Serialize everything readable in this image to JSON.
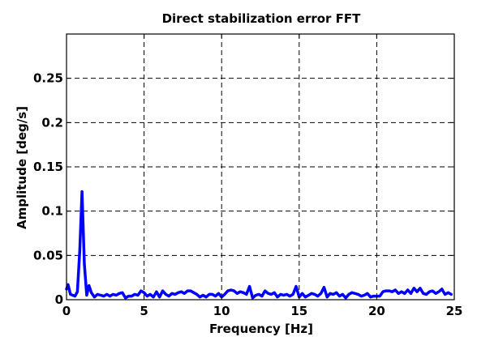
{
  "chart_data": {
    "type": "line",
    "title": "Direct stabilization error FFT",
    "xlabel": "Frequency [Hz]",
    "ylabel": "Amplitude [deg/s]",
    "xlim": [
      0,
      25
    ],
    "ylim": [
      0,
      0.3
    ],
    "xticks": [
      0,
      5,
      10,
      15,
      20,
      25
    ],
    "xtick_labels": [
      "0",
      "5",
      "10",
      "15",
      "20",
      "25"
    ],
    "yticks": [
      0,
      0.05,
      0.1,
      0.15,
      0.2,
      0.25
    ],
    "ytick_labels": [
      "0",
      "0.05",
      "0.1",
      "0.15",
      "0.2",
      "0.25"
    ],
    "grid": true,
    "series": [
      {
        "color": "#0000ff",
        "x": [
          0.0,
          0.1,
          0.25,
          0.4,
          0.55,
          0.7,
          0.85,
          1.0,
          1.15,
          1.3,
          1.45,
          1.6,
          1.8,
          2.0,
          2.2,
          2.4,
          2.6,
          2.8,
          3.0,
          3.2,
          3.4,
          3.6,
          3.8,
          4.0,
          4.2,
          4.4,
          4.6,
          4.8,
          5.0,
          5.2,
          5.4,
          5.6,
          5.8,
          6.0,
          6.2,
          6.4,
          6.6,
          6.8,
          7.0,
          7.2,
          7.4,
          7.6,
          7.8,
          8.0,
          8.2,
          8.4,
          8.6,
          8.8,
          9.0,
          9.2,
          9.4,
          9.6,
          9.8,
          10.0,
          10.2,
          10.4,
          10.6,
          10.8,
          11.0,
          11.2,
          11.4,
          11.6,
          11.8,
          12.0,
          12.2,
          12.4,
          12.6,
          12.8,
          13.0,
          13.2,
          13.4,
          13.6,
          13.8,
          14.0,
          14.2,
          14.4,
          14.6,
          14.8,
          15.0,
          15.2,
          15.4,
          15.6,
          15.8,
          16.0,
          16.2,
          16.4,
          16.6,
          16.8,
          17.0,
          17.2,
          17.4,
          17.6,
          17.8,
          18.0,
          18.2,
          18.4,
          18.6,
          18.8,
          19.0,
          19.2,
          19.4,
          19.6,
          19.8,
          20.0,
          20.2,
          20.4,
          20.6,
          20.8,
          21.0,
          21.2,
          21.4,
          21.6,
          21.8,
          22.0,
          22.2,
          22.4,
          22.6,
          22.8,
          23.0,
          23.2,
          23.4,
          23.6,
          23.8,
          24.0,
          24.2,
          24.4,
          24.6,
          24.8
        ],
        "y": [
          0.012,
          0.017,
          0.006,
          0.005,
          0.004,
          0.009,
          0.055,
          0.122,
          0.04,
          0.005,
          0.016,
          0.008,
          0.003,
          0.006,
          0.005,
          0.004,
          0.006,
          0.004,
          0.006,
          0.005,
          0.007,
          0.008,
          0.002,
          0.004,
          0.004,
          0.006,
          0.005,
          0.01,
          0.008,
          0.004,
          0.006,
          0.003,
          0.009,
          0.003,
          0.01,
          0.006,
          0.004,
          0.007,
          0.006,
          0.008,
          0.009,
          0.007,
          0.01,
          0.01,
          0.008,
          0.006,
          0.003,
          0.005,
          0.003,
          0.006,
          0.006,
          0.004,
          0.007,
          0.003,
          0.006,
          0.01,
          0.011,
          0.01,
          0.007,
          0.009,
          0.008,
          0.006,
          0.015,
          0.002,
          0.005,
          0.006,
          0.004,
          0.01,
          0.007,
          0.006,
          0.008,
          0.003,
          0.006,
          0.005,
          0.006,
          0.004,
          0.006,
          0.015,
          0.003,
          0.007,
          0.003,
          0.005,
          0.007,
          0.006,
          0.004,
          0.007,
          0.014,
          0.003,
          0.007,
          0.006,
          0.008,
          0.004,
          0.006,
          0.002,
          0.006,
          0.008,
          0.007,
          0.006,
          0.004,
          0.005,
          0.007,
          0.003,
          0.004,
          0.004,
          0.004,
          0.009,
          0.01,
          0.01,
          0.009,
          0.011,
          0.007,
          0.009,
          0.007,
          0.011,
          0.007,
          0.013,
          0.009,
          0.013,
          0.007,
          0.006,
          0.009,
          0.01,
          0.007,
          0.009,
          0.012,
          0.006,
          0.008,
          0.006
        ]
      }
    ]
  }
}
